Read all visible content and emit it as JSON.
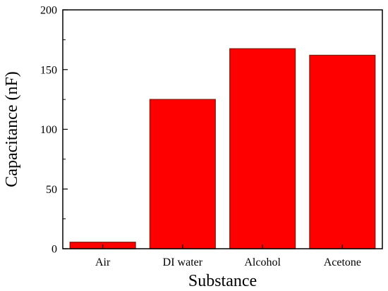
{
  "chart_data": {
    "type": "bar",
    "title": "",
    "xlabel": "Substance",
    "ylabel": "Capacitance (nF)",
    "categories": [
      "Air",
      "DI water",
      "Alcohol",
      "Acetone"
    ],
    "values": [
      5.5,
      125,
      167.5,
      162
    ],
    "ylim": [
      0,
      200
    ],
    "yticks": [
      0,
      50,
      100,
      150,
      200
    ],
    "yticks_minor": [
      25,
      75,
      125,
      175
    ],
    "grid": false,
    "legend": "none",
    "colors": {
      "bar_fill": "#ff0000",
      "bar_edge": "#7a1a0c",
      "axis": "#000000"
    }
  }
}
